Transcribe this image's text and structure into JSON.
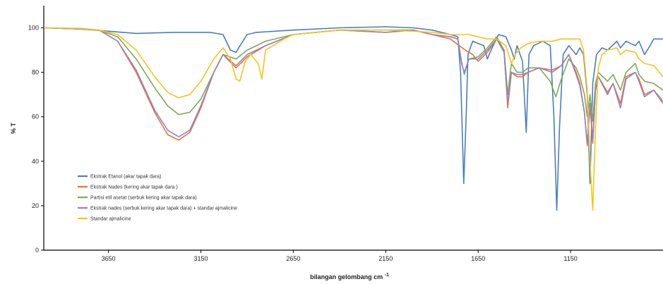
{
  "chart_data": {
    "type": "line",
    "xlabel": "bilangan gelombang cm",
    "xlabel_sup": "-1",
    "ylabel": "% T",
    "xlim": [
      4000,
      650
    ],
    "ylim": [
      0,
      110
    ],
    "x_ticks": [
      3650,
      3150,
      2650,
      2150,
      1650,
      1150
    ],
    "y_ticks": [
      0,
      20,
      40,
      60,
      80,
      100
    ],
    "grid": false,
    "legend_position": "left-middle",
    "series": [
      {
        "name": "Ekstrak Etanol (akar tapak dara)",
        "color": "#4a7ebb",
        "points": [
          [
            4000,
            100
          ],
          [
            3800,
            99.5
          ],
          [
            3650,
            98.5
          ],
          [
            3500,
            97.5
          ],
          [
            3300,
            98
          ],
          [
            3100,
            98
          ],
          [
            3030,
            97
          ],
          [
            2990,
            90
          ],
          [
            2960,
            89
          ],
          [
            2930,
            93
          ],
          [
            2900,
            97
          ],
          [
            2850,
            98
          ],
          [
            2650,
            99
          ],
          [
            2400,
            100
          ],
          [
            2150,
            100.5
          ],
          [
            2000,
            100
          ],
          [
            1900,
            99
          ],
          [
            1800,
            97
          ],
          [
            1760,
            96
          ],
          [
            1745,
            80
          ],
          [
            1728,
            30
          ],
          [
            1715,
            60
          ],
          [
            1705,
            88
          ],
          [
            1680,
            94
          ],
          [
            1620,
            92
          ],
          [
            1600,
            86
          ],
          [
            1580,
            90
          ],
          [
            1540,
            97
          ],
          [
            1500,
            96
          ],
          [
            1470,
            90
          ],
          [
            1455,
            86
          ],
          [
            1440,
            92
          ],
          [
            1410,
            85
          ],
          [
            1390,
            53
          ],
          [
            1375,
            88
          ],
          [
            1350,
            92
          ],
          [
            1300,
            94
          ],
          [
            1260,
            92
          ],
          [
            1240,
            60
          ],
          [
            1225,
            18
          ],
          [
            1210,
            55
          ],
          [
            1190,
            88
          ],
          [
            1160,
            92
          ],
          [
            1120,
            88
          ],
          [
            1100,
            91
          ],
          [
            1080,
            88
          ],
          [
            1060,
            70
          ],
          [
            1045,
            30
          ],
          [
            1030,
            75
          ],
          [
            1010,
            88
          ],
          [
            980,
            91
          ],
          [
            950,
            90
          ],
          [
            900,
            94
          ],
          [
            880,
            91
          ],
          [
            850,
            94
          ],
          [
            800,
            92
          ],
          [
            780,
            94
          ],
          [
            750,
            88
          ],
          [
            720,
            92
          ],
          [
            700,
            95
          ],
          [
            650,
            95
          ]
        ]
      },
      {
        "name": "Ekstrak Nades (kering akar tapak dara )",
        "color": "#e8713a",
        "points": [
          [
            4000,
            100
          ],
          [
            3800,
            99.5
          ],
          [
            3700,
            99
          ],
          [
            3600,
            94
          ],
          [
            3500,
            80
          ],
          [
            3400,
            62
          ],
          [
            3330,
            52
          ],
          [
            3270,
            49.5
          ],
          [
            3210,
            53
          ],
          [
            3150,
            64
          ],
          [
            3080,
            80
          ],
          [
            3030,
            88
          ],
          [
            2960,
            82
          ],
          [
            2900,
            87
          ],
          [
            2800,
            92
          ],
          [
            2650,
            97
          ],
          [
            2400,
            99
          ],
          [
            2150,
            98
          ],
          [
            2000,
            99
          ],
          [
            1900,
            97
          ],
          [
            1800,
            95
          ],
          [
            1720,
            90
          ],
          [
            1680,
            88
          ],
          [
            1650,
            85
          ],
          [
            1600,
            89
          ],
          [
            1550,
            95
          ],
          [
            1510,
            90
          ],
          [
            1490,
            64
          ],
          [
            1470,
            80
          ],
          [
            1440,
            78
          ],
          [
            1410,
            78
          ],
          [
            1380,
            80
          ],
          [
            1320,
            82
          ],
          [
            1250,
            81
          ],
          [
            1200,
            83
          ],
          [
            1160,
            88
          ],
          [
            1120,
            80
          ],
          [
            1100,
            75
          ],
          [
            1075,
            62
          ],
          [
            1060,
            47
          ],
          [
            1045,
            65
          ],
          [
            1030,
            48
          ],
          [
            1015,
            72
          ],
          [
            1000,
            78
          ],
          [
            950,
            71
          ],
          [
            920,
            75
          ],
          [
            880,
            66
          ],
          [
            850,
            78
          ],
          [
            800,
            80
          ],
          [
            780,
            77
          ],
          [
            750,
            70
          ],
          [
            700,
            72
          ],
          [
            650,
            67
          ]
        ]
      },
      {
        "name": "Partisi etil asetat (serbuk kering akar tapak dara)",
        "color": "#7fa956",
        "points": [
          [
            4000,
            100
          ],
          [
            3800,
            99.5
          ],
          [
            3700,
            99
          ],
          [
            3600,
            96
          ],
          [
            3500,
            86
          ],
          [
            3400,
            73
          ],
          [
            3330,
            65
          ],
          [
            3270,
            61
          ],
          [
            3210,
            62
          ],
          [
            3150,
            68
          ],
          [
            3080,
            80
          ],
          [
            3030,
            88
          ],
          [
            2960,
            86
          ],
          [
            2900,
            90
          ],
          [
            2800,
            94
          ],
          [
            2650,
            97
          ],
          [
            2400,
            99
          ],
          [
            2150,
            99
          ],
          [
            2000,
            99
          ],
          [
            1900,
            97
          ],
          [
            1800,
            96
          ],
          [
            1760,
            95
          ],
          [
            1740,
            85
          ],
          [
            1725,
            79
          ],
          [
            1700,
            86
          ],
          [
            1650,
            87
          ],
          [
            1600,
            91
          ],
          [
            1550,
            96
          ],
          [
            1510,
            90
          ],
          [
            1490,
            70
          ],
          [
            1470,
            84
          ],
          [
            1440,
            80
          ],
          [
            1410,
            80
          ],
          [
            1380,
            82
          ],
          [
            1320,
            82
          ],
          [
            1260,
            76
          ],
          [
            1230,
            69
          ],
          [
            1200,
            77
          ],
          [
            1160,
            86
          ],
          [
            1120,
            82
          ],
          [
            1100,
            78
          ],
          [
            1075,
            70
          ],
          [
            1060,
            60
          ],
          [
            1045,
            70
          ],
          [
            1030,
            58
          ],
          [
            1015,
            75
          ],
          [
            1000,
            80
          ],
          [
            950,
            76
          ],
          [
            920,
            79
          ],
          [
            880,
            72
          ],
          [
            850,
            80
          ],
          [
            800,
            84
          ],
          [
            780,
            79
          ],
          [
            750,
            76
          ],
          [
            700,
            75
          ],
          [
            650,
            72
          ]
        ]
      },
      {
        "name": "Ekstrak nades (serbuk kering akar tapak dara) + standar ajmalicine",
        "color": "#9a7fbf",
        "points": [
          [
            4000,
            100
          ],
          [
            3800,
            99.5
          ],
          [
            3700,
            99
          ],
          [
            3600,
            94
          ],
          [
            3500,
            81
          ],
          [
            3400,
            63
          ],
          [
            3330,
            54
          ],
          [
            3270,
            51
          ],
          [
            3210,
            54
          ],
          [
            3150,
            65
          ],
          [
            3080,
            80
          ],
          [
            3030,
            88
          ],
          [
            2960,
            83
          ],
          [
            2900,
            88
          ],
          [
            2800,
            92
          ],
          [
            2650,
            97
          ],
          [
            2400,
            99
          ],
          [
            2150,
            98
          ],
          [
            2000,
            99
          ],
          [
            1900,
            97
          ],
          [
            1800,
            96
          ],
          [
            1760,
            95
          ],
          [
            1740,
            84
          ],
          [
            1725,
            80
          ],
          [
            1700,
            86
          ],
          [
            1650,
            86
          ],
          [
            1600,
            90
          ],
          [
            1550,
            95
          ],
          [
            1510,
            89
          ],
          [
            1490,
            66
          ],
          [
            1470,
            80
          ],
          [
            1440,
            79
          ],
          [
            1410,
            79
          ],
          [
            1380,
            80
          ],
          [
            1320,
            82
          ],
          [
            1250,
            80
          ],
          [
            1200,
            83
          ],
          [
            1160,
            88
          ],
          [
            1120,
            79
          ],
          [
            1100,
            74
          ],
          [
            1075,
            62
          ],
          [
            1060,
            48
          ],
          [
            1045,
            66
          ],
          [
            1030,
            50
          ],
          [
            1015,
            72
          ],
          [
            1000,
            78
          ],
          [
            950,
            70
          ],
          [
            920,
            75
          ],
          [
            880,
            64
          ],
          [
            850,
            77
          ],
          [
            800,
            80
          ],
          [
            780,
            76
          ],
          [
            750,
            69
          ],
          [
            700,
            72
          ],
          [
            650,
            66
          ]
        ]
      },
      {
        "name": "Standar ajmalicine",
        "color": "#f5c518",
        "points": [
          [
            4000,
            100
          ],
          [
            3800,
            99.8
          ],
          [
            3700,
            99
          ],
          [
            3600,
            97
          ],
          [
            3500,
            90
          ],
          [
            3400,
            78
          ],
          [
            3330,
            71
          ],
          [
            3270,
            68.5
          ],
          [
            3210,
            70
          ],
          [
            3150,
            76
          ],
          [
            3080,
            86
          ],
          [
            3030,
            91
          ],
          [
            2990,
            86
          ],
          [
            2960,
            77
          ],
          [
            2940,
            76
          ],
          [
            2910,
            85
          ],
          [
            2880,
            88
          ],
          [
            2840,
            84
          ],
          [
            2820,
            77
          ],
          [
            2800,
            90
          ],
          [
            2700,
            95
          ],
          [
            2650,
            97
          ],
          [
            2400,
            99
          ],
          [
            2150,
            99
          ],
          [
            2000,
            98.5
          ],
          [
            1900,
            98
          ],
          [
            1800,
            97
          ],
          [
            1700,
            97
          ],
          [
            1650,
            96
          ],
          [
            1600,
            95
          ],
          [
            1550,
            95
          ],
          [
            1500,
            92
          ],
          [
            1470,
            84
          ],
          [
            1450,
            88
          ],
          [
            1420,
            91
          ],
          [
            1380,
            93
          ],
          [
            1320,
            94
          ],
          [
            1250,
            94
          ],
          [
            1200,
            95
          ],
          [
            1160,
            95
          ],
          [
            1100,
            95
          ],
          [
            1080,
            90
          ],
          [
            1060,
            72
          ],
          [
            1045,
            40
          ],
          [
            1030,
            18
          ],
          [
            1015,
            55
          ],
          [
            1000,
            82
          ],
          [
            980,
            88
          ],
          [
            950,
            90
          ],
          [
            900,
            91
          ],
          [
            880,
            88
          ],
          [
            850,
            90
          ],
          [
            800,
            89
          ],
          [
            780,
            86
          ],
          [
            750,
            84
          ],
          [
            700,
            83
          ],
          [
            650,
            78
          ]
        ]
      }
    ]
  }
}
